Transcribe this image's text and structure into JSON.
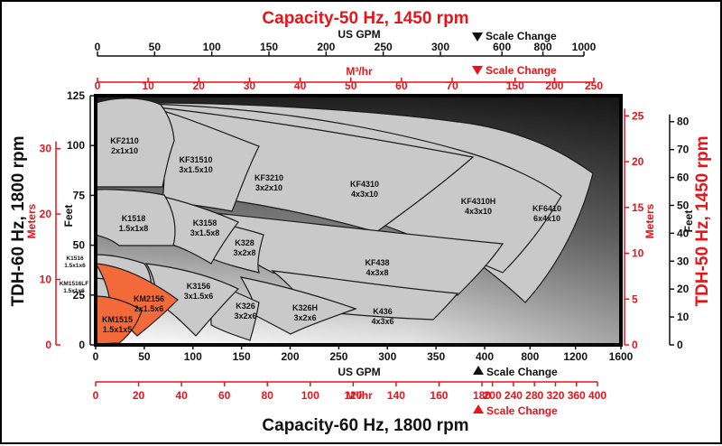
{
  "colors": {
    "red": "#e8141a",
    "black": "#111111",
    "zone": "#c9c9c9",
    "highlight": "#f26a3a",
    "outline": "#1a1a1a"
  },
  "titles": {
    "top": "Capacity-50 Hz, 1450 rpm",
    "bottom": "Capacity-60 Hz, 1800 rpm",
    "left": "TDH-60 Hz, 1800 rpm",
    "right": "TDH-50 Hz, 1450 rpm"
  },
  "axis_labels": {
    "usgpm_top": "US GPM",
    "m3hr_top": "M³/hr",
    "usgpm_bottom": "US GPM",
    "m3hr_bottom": "M³/hr",
    "feet_left": "Feet",
    "meters_left": "Meters",
    "meters_right": "Meters",
    "feet_right": "Feet"
  },
  "scale_change": {
    "top_black": "Scale Change",
    "top_red": "Scale Change",
    "bottom_black": "Scale Change",
    "bottom_red": "Scale Change"
  },
  "chart_data": {
    "type": "area",
    "description_axes": {
      "x_main_60hz_usgpm": {
        "ticks": [
          0,
          50,
          100,
          150,
          200,
          250,
          300,
          350,
          400,
          800,
          1200,
          1600
        ],
        "note": "scale change after 400"
      },
      "x_main_60hz_m3hr": {
        "ticks": [
          0,
          20,
          40,
          60,
          80,
          100,
          120,
          140,
          160,
          180,
          200,
          240,
          280,
          320,
          360,
          400
        ],
        "note": "scale change after 180"
      },
      "x_top_50hz_usgpm": {
        "ticks": [
          0,
          50,
          100,
          150,
          200,
          250,
          300,
          600,
          800,
          1000
        ],
        "note": "scale change after 300"
      },
      "x_top_50hz_m3hr": {
        "ticks": [
          0,
          10,
          20,
          30,
          40,
          50,
          60,
          70,
          150,
          200,
          250
        ],
        "note": "scale change after 70"
      },
      "y_left_feet": {
        "ticks": [
          0,
          25,
          50,
          75,
          100,
          125
        ],
        "range": [
          0,
          125
        ]
      },
      "y_left_meters": {
        "ticks": [
          0,
          10,
          20,
          30
        ]
      },
      "y_right_meters": {
        "ticks": [
          0,
          5,
          10,
          15,
          20,
          25
        ]
      },
      "y_right_feet": {
        "ticks": [
          0,
          10,
          20,
          30,
          40,
          50,
          60,
          70,
          80
        ]
      }
    },
    "pump_zones": [
      {
        "name": "KF2110",
        "size": "2x1x10",
        "highlight": false
      },
      {
        "name": "KF31510",
        "size": "3x1.5x10",
        "highlight": false
      },
      {
        "name": "KF3210",
        "size": "3x2x10",
        "highlight": false
      },
      {
        "name": "KF4310",
        "size": "4x3x10",
        "highlight": false
      },
      {
        "name": "KF4310H",
        "size": "4x3x10",
        "highlight": false
      },
      {
        "name": "KF6410",
        "size": "6x4x10",
        "highlight": false
      },
      {
        "name": "K1518",
        "size": "1.5x1x8",
        "highlight": false
      },
      {
        "name": "K3158",
        "size": "3x1.5x8",
        "highlight": false
      },
      {
        "name": "K328",
        "size": "3x2x8",
        "highlight": false
      },
      {
        "name": "KF438",
        "size": "4x3x8",
        "highlight": false
      },
      {
        "name": "K1516",
        "size": "1.5x1x6",
        "highlight": false
      },
      {
        "name": "KM1516LF",
        "size": "1.5x1x6",
        "highlight": false
      },
      {
        "name": "KM2156",
        "size": "2x1.5x6",
        "highlight": true
      },
      {
        "name": "KM1515",
        "size": "1.5x1x5",
        "highlight": true
      },
      {
        "name": "K3156",
        "size": "3x1.5x6",
        "highlight": false
      },
      {
        "name": "K326",
        "size": "3x2x6",
        "highlight": false
      },
      {
        "name": "K326H",
        "size": "3x2x6",
        "highlight": false
      },
      {
        "name": "K436",
        "size": "4x3x6",
        "highlight": false
      }
    ]
  }
}
